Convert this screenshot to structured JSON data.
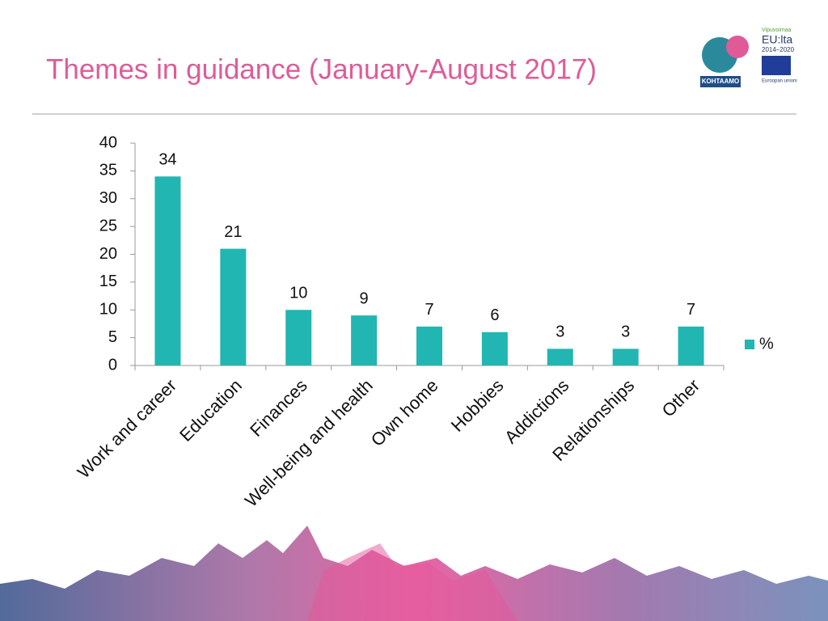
{
  "chart_data": {
    "type": "bar",
    "title": "Themes in guidance (January-August 2017)",
    "categories": [
      "Work and career",
      "Education",
      "Finances",
      "Well-being and health",
      "Own home",
      "Hobbies",
      "Addictions",
      "Relationships",
      "Other"
    ],
    "series": [
      {
        "name": "%",
        "color": "#21b6b1",
        "values": [
          34,
          21,
          10,
          9,
          7,
          6,
          3,
          3,
          7
        ]
      }
    ],
    "ylim": [
      0,
      40
    ],
    "yticks": [
      0,
      5,
      10,
      15,
      20,
      25,
      30,
      35,
      40
    ],
    "grid": false,
    "legend": "right"
  },
  "logos": {
    "kohtaamo": "KOHTAAMO",
    "eu_top": "Vipuvoimaa",
    "eu_main": "EU:lta",
    "eu_years": "2014–2020",
    "eu_union": "Euroopan unioni"
  }
}
